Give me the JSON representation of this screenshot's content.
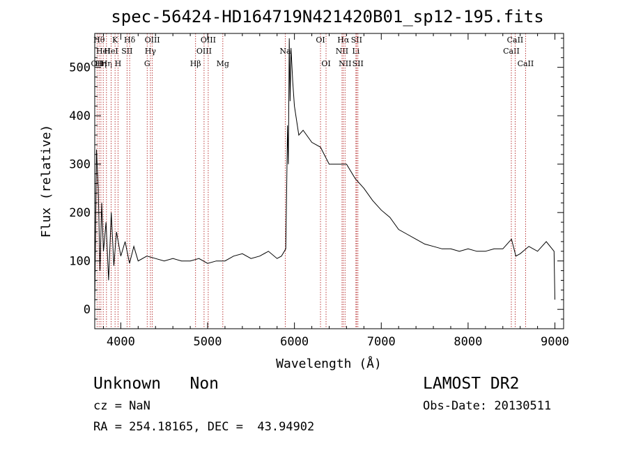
{
  "chart_data": {
    "type": "line",
    "title": "spec-56424-HD164719N421420B01_sp12-195.fits",
    "xlabel": "Wavelength (Å)",
    "ylabel": "Flux (relative)",
    "xlim": [
      3700,
      9100
    ],
    "ylim": [
      -40,
      570
    ],
    "grid": false,
    "legend": "none",
    "x_ticks": [
      4000,
      5000,
      6000,
      7000,
      8000,
      9000
    ],
    "x_tick_labels": [
      "4000",
      "5000",
      "6000",
      "7000",
      "8000",
      "9000"
    ],
    "y_ticks": [
      0,
      100,
      200,
      300,
      400,
      500
    ],
    "y_tick_labels": [
      "0",
      "100",
      "200",
      "300",
      "400",
      "500"
    ],
    "series": [
      {
        "x": [
          3700,
          3720,
          3740,
          3760,
          3780,
          3800,
          3830,
          3860,
          3890,
          3920,
          3950,
          4000,
          4050,
          4100,
          4150,
          4200,
          4300,
          4400,
          4500,
          4600,
          4700,
          4800,
          4900,
          5000,
          5100,
          5200,
          5300,
          5400,
          5500,
          5600,
          5700,
          5800,
          5850,
          5900,
          5910,
          5920,
          5930,
          5940,
          5950,
          5960,
          5980,
          6000,
          6050,
          6100,
          6200,
          6300,
          6400,
          6500,
          6600,
          6700,
          6800,
          6900,
          7000,
          7100,
          7200,
          7300,
          7400,
          7500,
          7600,
          7700,
          7800,
          7900,
          8000,
          8100,
          8200,
          8300,
          8400,
          8500,
          8550,
          8600,
          8700,
          8800,
          8900,
          8990,
          9000
        ],
        "y": [
          10,
          330,
          250,
          80,
          220,
          120,
          180,
          60,
          200,
          90,
          160,
          110,
          140,
          95,
          130,
          100,
          110,
          105,
          100,
          105,
          100,
          100,
          105,
          95,
          100,
          100,
          110,
          115,
          105,
          110,
          120,
          105,
          110,
          125,
          240,
          380,
          300,
          560,
          430,
          540,
          470,
          420,
          360,
          370,
          345,
          335,
          300,
          300,
          300,
          270,
          250,
          225,
          205,
          190,
          165,
          155,
          145,
          135,
          130,
          125,
          125,
          120,
          125,
          120,
          120,
          125,
          125,
          145,
          110,
          115,
          130,
          120,
          140,
          120,
          20
        ]
      }
    ],
    "line_marks": [
      {
        "x": 3727,
        "label": "OII",
        "row": 2
      },
      {
        "x": 3750,
        "label": "Hθ",
        "row": 0
      },
      {
        "x": 3771,
        "label": "Hη",
        "row": 2
      },
      {
        "x": 3798,
        "label": "HeI",
        "row": 1
      },
      {
        "x": 3835,
        "label": "Hη",
        "row": 2
      },
      {
        "x": 3889,
        "label": "HeI",
        "row": 1
      },
      {
        "x": 3934,
        "label": "K",
        "row": 0
      },
      {
        "x": 3968,
        "label": "H",
        "row": 2
      },
      {
        "x": 4072,
        "label": "SII",
        "row": 1
      },
      {
        "x": 4102,
        "label": "Hδ",
        "row": 0
      },
      {
        "x": 4304,
        "label": "G",
        "row": 2
      },
      {
        "x": 4341,
        "label": "Hγ",
        "row": 1
      },
      {
        "x": 4363,
        "label": "OIII",
        "row": 0
      },
      {
        "x": 4861,
        "label": "Hβ",
        "row": 2
      },
      {
        "x": 4959,
        "label": "OIII",
        "row": 1
      },
      {
        "x": 5007,
        "label": "OIII",
        "row": 0
      },
      {
        "x": 5175,
        "label": "Mg",
        "row": 2
      },
      {
        "x": 5894,
        "label": "Na",
        "row": 1
      },
      {
        "x": 6300,
        "label": "OI",
        "row": 0
      },
      {
        "x": 6364,
        "label": "OI",
        "row": 2
      },
      {
        "x": 6548,
        "label": "NII",
        "row": 1
      },
      {
        "x": 6563,
        "label": "Hα",
        "row": 0
      },
      {
        "x": 6583,
        "label": "NII",
        "row": 2
      },
      {
        "x": 6708,
        "label": "Li",
        "row": 1
      },
      {
        "x": 6716,
        "label": "SII",
        "row": 0
      },
      {
        "x": 6731,
        "label": "SII",
        "row": 2
      },
      {
        "x": 8498,
        "label": "CaII",
        "row": 1
      },
      {
        "x": 8542,
        "label": "CaII",
        "row": 0
      },
      {
        "x": 8662,
        "label": "CaII",
        "row": 2
      }
    ]
  },
  "info": {
    "class_text": "Unknown   Non",
    "survey": "LAMOST DR2",
    "cz": "cz = NaN",
    "obs_date": "Obs-Date: 20130511",
    "coords": "RA = 254.18165, DEC =  43.94902"
  },
  "colors": {
    "spectrum": "#000000",
    "line_marks": "#b22222",
    "background": "#ffffff"
  }
}
